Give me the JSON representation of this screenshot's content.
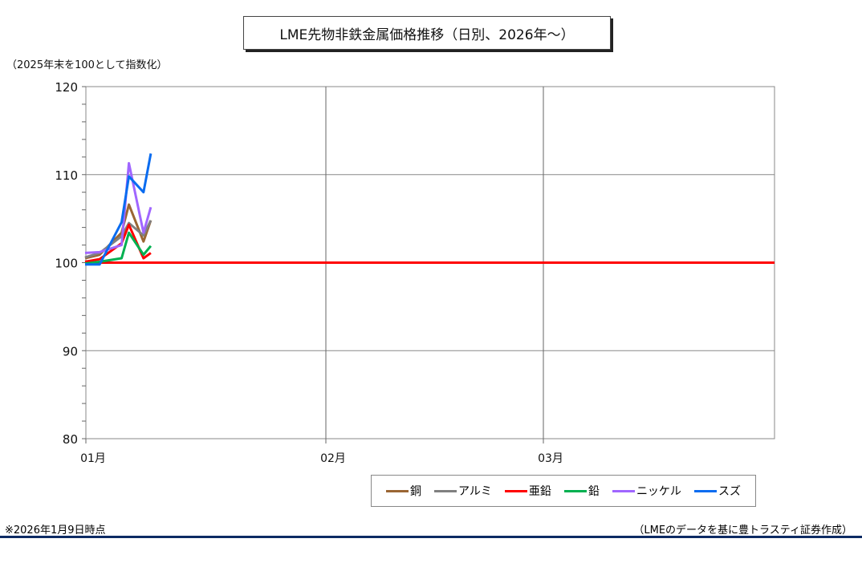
{
  "title": "LME先物非鉄金属価格推移（日別、2026年～）",
  "unit_label": "（2025年末を100として指数化）",
  "footnote": "※2026年1月9日時点",
  "source": "（LMEのデータを基に豊トラスティ証券作成）",
  "chart_data": {
    "type": "line",
    "title": "LME先物非鉄金属価格推移（日別、2026年～）",
    "ylabel": "（2025年末を100として指数化）",
    "ylim": [
      80,
      120
    ],
    "yticks": [
      "80",
      "90",
      "100",
      "110",
      "120"
    ],
    "xticks": [
      "01月",
      "02月",
      "03月"
    ],
    "grid": true,
    "legend_position": "bottom",
    "x": [
      "2025-12-31",
      "2026-01-02",
      "2026-01-05",
      "2026-01-06",
      "2026-01-08",
      "2026-01-09"
    ],
    "x_day": [
      0,
      2,
      5,
      6,
      8,
      9
    ],
    "series": [
      {
        "name": "銅",
        "color": "#9a6634",
        "values": [
          100.5,
          100.9,
          103.4,
          106.6,
          102.4,
          104.8
        ]
      },
      {
        "name": "アルミ",
        "color": "#808080",
        "values": [
          100.6,
          101.1,
          103.0,
          104.5,
          103.1,
          104.8
        ]
      },
      {
        "name": "亜鉛",
        "color": "#ff0000",
        "values": [
          100.1,
          100.4,
          102.2,
          104.3,
          100.5,
          101.1
        ]
      },
      {
        "name": "鉛",
        "color": "#00b050",
        "values": [
          99.9,
          100.1,
          100.5,
          103.4,
          100.9,
          101.9
        ]
      },
      {
        "name": "ニッケル",
        "color": "#a066ff",
        "values": [
          101.1,
          101.2,
          102.0,
          111.3,
          103.4,
          106.3
        ]
      },
      {
        "name": "スズ",
        "color": "#0a6cf0",
        "values": [
          99.8,
          99.8,
          104.6,
          109.8,
          108.0,
          112.4
        ]
      }
    ],
    "baseline": {
      "value": 100,
      "color": "#ff0000"
    }
  }
}
